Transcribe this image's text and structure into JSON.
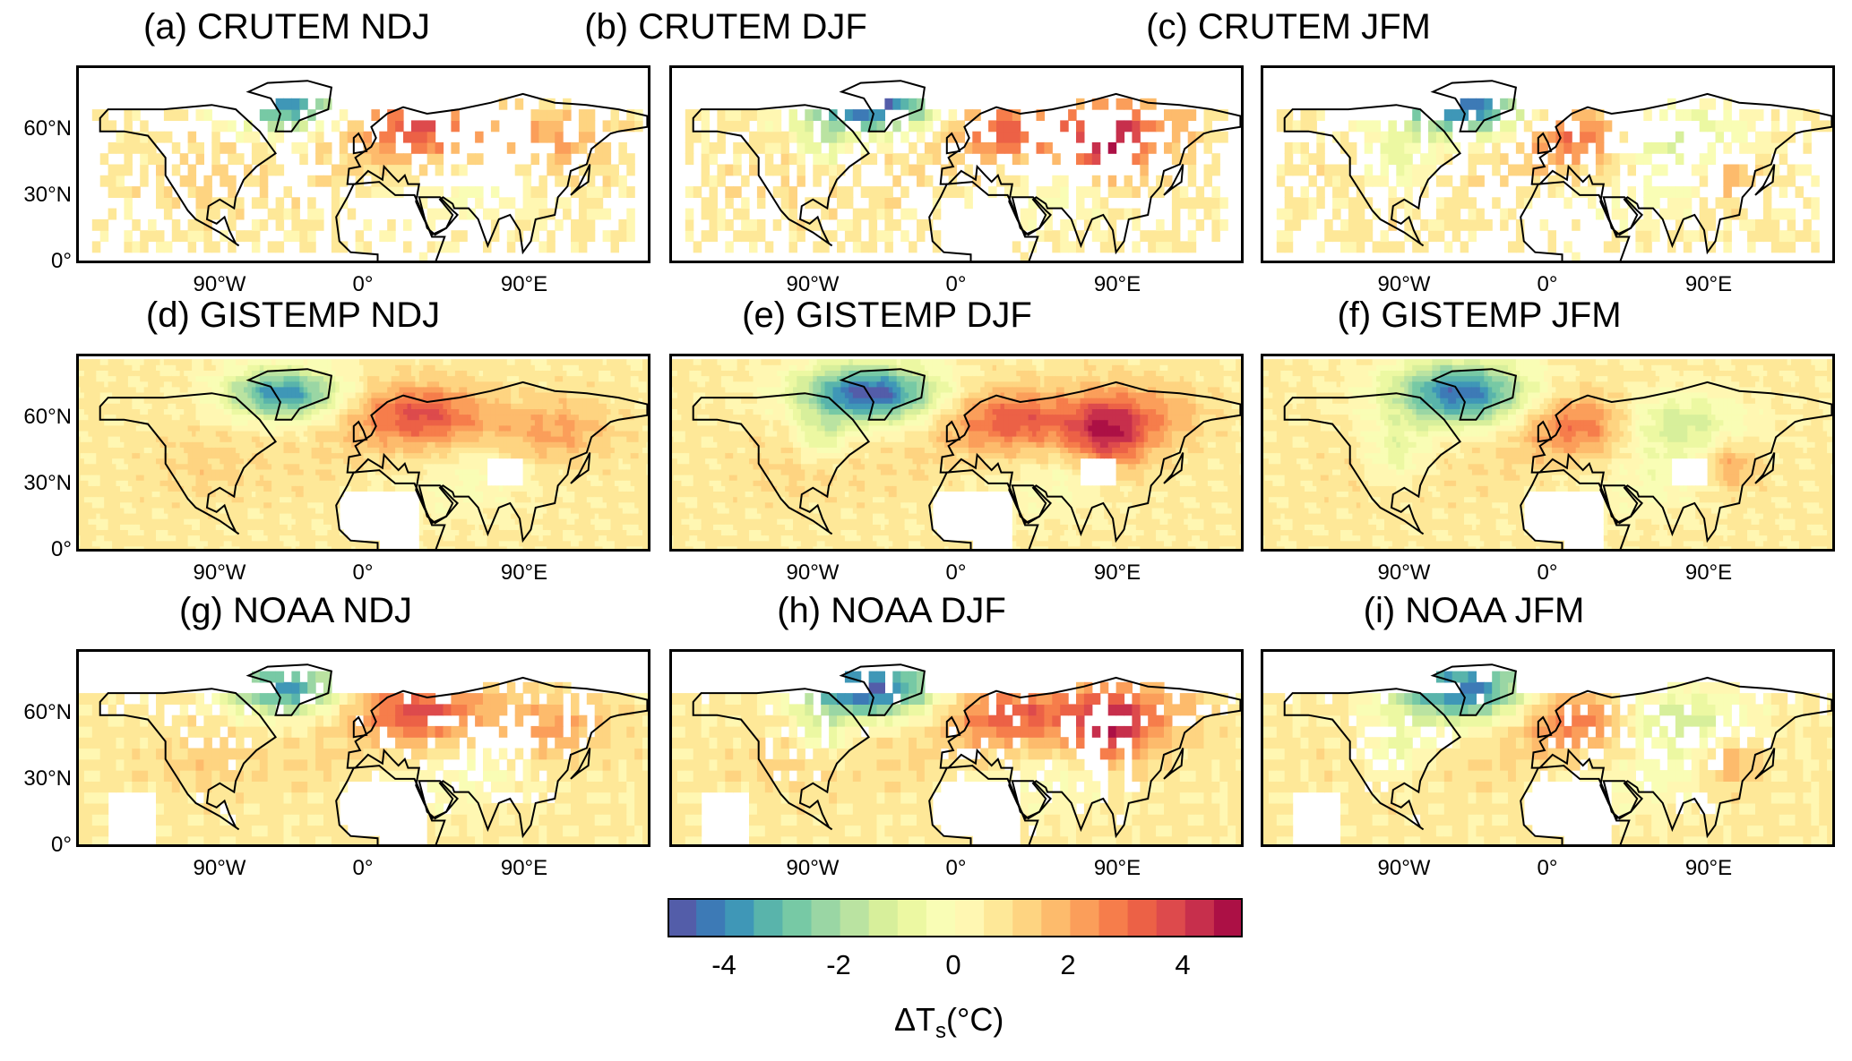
{
  "panels": [
    {
      "title": "(a) CRUTEM NDJ",
      "dataset": "CRUTEM",
      "season": "NDJ",
      "coverage": "sparse"
    },
    {
      "title": "(b) CRUTEM DJF",
      "dataset": "CRUTEM",
      "season": "DJF",
      "coverage": "sparse"
    },
    {
      "title": "(c) CRUTEM JFM",
      "dataset": "CRUTEM",
      "season": "JFM",
      "coverage": "sparse"
    },
    {
      "title": "(d) GISTEMP NDJ",
      "dataset": "GISTEMP",
      "season": "NDJ",
      "coverage": "full"
    },
    {
      "title": "(e) GISTEMP DJF",
      "dataset": "GISTEMP",
      "season": "DJF",
      "coverage": "full"
    },
    {
      "title": "(f) GISTEMP JFM",
      "dataset": "GISTEMP",
      "season": "JFM",
      "coverage": "full"
    },
    {
      "title": "(g) NOAA NDJ",
      "dataset": "NOAA",
      "season": "NDJ",
      "coverage": "medium"
    },
    {
      "title": "(h) NOAA DJF",
      "dataset": "NOAA",
      "season": "DJF",
      "coverage": "medium"
    },
    {
      "title": "(i) NOAA JFM",
      "dataset": "NOAA",
      "season": "JFM",
      "coverage": "medium"
    }
  ],
  "lat_ticks": [
    {
      "label": "60°N",
      "lat": 60
    },
    {
      "label": "30°N",
      "lat": 30
    },
    {
      "label": "0°",
      "lat": 0
    }
  ],
  "lon_ticks": [
    {
      "label": "90°W",
      "lon": -90
    },
    {
      "label": "0°",
      "lon": 0
    },
    {
      "label": "90°E",
      "lon": 90
    }
  ],
  "map_extent": {
    "lon": [
      -180,
      180
    ],
    "lat": [
      0,
      90
    ]
  },
  "colorbar": {
    "vmin": -5,
    "vmax": 5,
    "nbins": 20,
    "ticks": [
      "-4",
      "-2",
      "0",
      "2",
      "4"
    ],
    "tick_values": [
      -4,
      -2,
      0,
      2,
      4
    ],
    "label": "ΔTs(°C)",
    "colormap": [
      "#5e4fa2",
      "#3288bd",
      "#66c2a5",
      "#abdda4",
      "#e6f598",
      "#ffffbf",
      "#fee08b",
      "#fdae61",
      "#f46d43",
      "#d53e4f",
      "#9e0142"
    ]
  }
}
